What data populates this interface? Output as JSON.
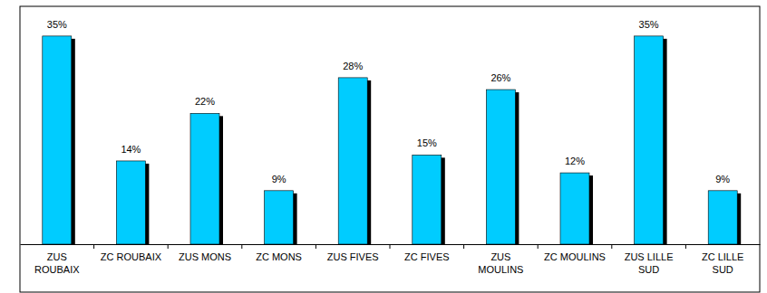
{
  "chart_data": {
    "type": "bar",
    "categories": [
      "ZUS ROUBAIX",
      "ZC ROUBAIX",
      "ZUS MONS",
      "ZC MONS",
      "ZUS FIVES",
      "ZC FIVES",
      "ZUS MOULINS",
      "ZC MOULINS",
      "ZUS LILLE SUD",
      "ZC LILLE SUD"
    ],
    "values": [
      35,
      14,
      22,
      9,
      28,
      15,
      26,
      12,
      35,
      9
    ],
    "value_labels": [
      "35%",
      "14%",
      "22%",
      "9%",
      "28%",
      "15%",
      "26%",
      "12%",
      "35%",
      "9%"
    ],
    "color": "#00ccff",
    "ylim": [
      0,
      40
    ],
    "data_labels": true,
    "tick_labels": "x",
    "grid": false
  }
}
